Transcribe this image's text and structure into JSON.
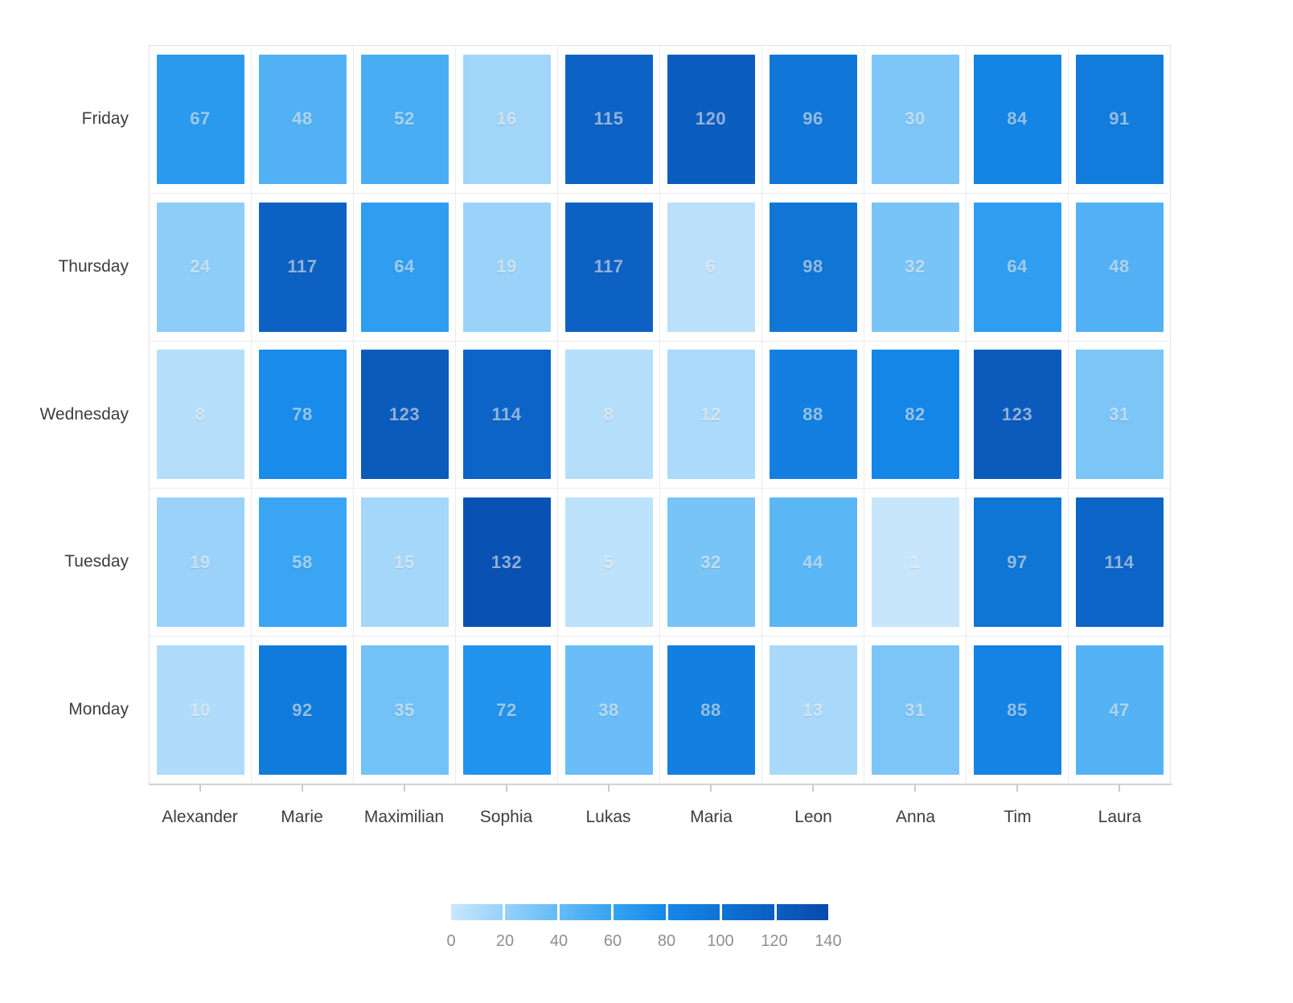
{
  "chart_data": {
    "type": "heatmap",
    "title": "",
    "x_categories": [
      "Alexander",
      "Marie",
      "Maximilian",
      "Sophia",
      "Lukas",
      "Maria",
      "Leon",
      "Anna",
      "Tim",
      "Laura"
    ],
    "y_categories_top_to_bottom": [
      "Friday",
      "Thursday",
      "Wednesday",
      "Tuesday",
      "Monday"
    ],
    "rows": [
      {
        "label": "Friday",
        "values": [
          67,
          48,
          52,
          16,
          115,
          120,
          96,
          30,
          84,
          91
        ]
      },
      {
        "label": "Thursday",
        "values": [
          24,
          117,
          64,
          19,
          117,
          6,
          98,
          32,
          64,
          48
        ]
      },
      {
        "label": "Wednesday",
        "values": [
          8,
          78,
          123,
          114,
          8,
          12,
          88,
          82,
          123,
          31
        ]
      },
      {
        "label": "Tuesday",
        "values": [
          19,
          58,
          15,
          132,
          5,
          32,
          44,
          1,
          97,
          114
        ]
      },
      {
        "label": "Monday",
        "values": [
          10,
          92,
          35,
          72,
          38,
          88,
          13,
          31,
          85,
          47
        ]
      }
    ],
    "colorscale": {
      "min": 0,
      "max": 140,
      "tick_labels": [
        "0",
        "20",
        "40",
        "60",
        "80",
        "100",
        "120",
        "140"
      ],
      "stops": [
        {
          "value": 0,
          "color": "#c9e7fc"
        },
        {
          "value": 20,
          "color": "#97d1f9"
        },
        {
          "value": 40,
          "color": "#65bbf6"
        },
        {
          "value": 60,
          "color": "#35a3f1"
        },
        {
          "value": 80,
          "color": "#1588ea"
        },
        {
          "value": 100,
          "color": "#0f73d3"
        },
        {
          "value": 120,
          "color": "#0b5ec0"
        },
        {
          "value": 140,
          "color": "#084aac"
        }
      ],
      "legend_position": "bottom-center"
    },
    "layout_hints": {
      "grid": "light-gray cell separators",
      "cell_value_labels": "shown, centered"
    }
  }
}
